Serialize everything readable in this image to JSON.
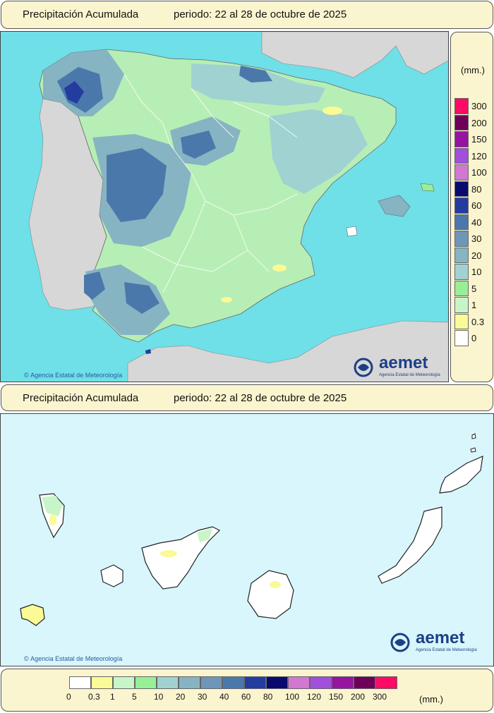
{
  "top_panel": {
    "title": "Precipitación Acumulada",
    "period": "periodo: 22 al 28 de octubre de 2025"
  },
  "bottom_panel": {
    "title": "Precipitación Acumulada",
    "period": "periodo: 22 al 28 de octubre de 2025"
  },
  "legend": {
    "unit": "(mm.)",
    "levels": [
      "0",
      "0.3",
      "1",
      "5",
      "10",
      "20",
      "30",
      "40",
      "60",
      "80",
      "100",
      "120",
      "150",
      "200",
      "300"
    ],
    "colors": [
      "#ffffff",
      "#fafa96",
      "#c8f5c8",
      "#96f096",
      "#a0d2d2",
      "#87b4c3",
      "#6e96b9",
      "#4b78aa",
      "#233ca0",
      "#0a0a6e",
      "#d278d2",
      "#a050dc",
      "#9614a0",
      "#6e005a",
      "#ff0a64"
    ]
  },
  "credit": "Agencia Estatal de Meteorología",
  "logo": {
    "name": "aemet",
    "subtitle": "Agencia Estatal de Meteorología"
  },
  "map_colors": {
    "sea": "#6fdfe8",
    "land_outside": "#d7d7d7",
    "canary_sea": "#d8f6fb"
  }
}
